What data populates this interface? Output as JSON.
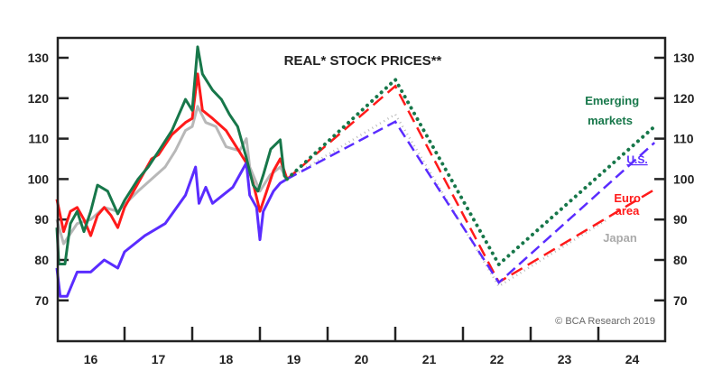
{
  "chart_data": {
    "type": "line",
    "title": "REAL* STOCK PRICES**",
    "copyright": "© BCA Research 2019",
    "xlabel": "",
    "ylabel": "",
    "xlim": [
      2016.0,
      2025.0
    ],
    "ylim": [
      62,
      135
    ],
    "yticks": [
      70,
      80,
      90,
      100,
      110,
      120,
      130
    ],
    "xtick_labels": [
      {
        "year": 2016.5,
        "label": "16"
      },
      {
        "year": 2017.5,
        "label": "17"
      },
      {
        "year": 2018.5,
        "label": "18"
      },
      {
        "year": 2019.5,
        "label": "19"
      },
      {
        "year": 2020.5,
        "label": "20"
      },
      {
        "year": 2021.5,
        "label": "21"
      },
      {
        "year": 2022.5,
        "label": "22"
      },
      {
        "year": 2023.5,
        "label": "23"
      },
      {
        "year": 2024.5,
        "label": "24"
      }
    ],
    "xtick_marks": [
      2017,
      2018,
      2019,
      2020,
      2021,
      2022,
      2023,
      2024
    ],
    "grid": false,
    "series": [
      {
        "name": "Japan",
        "label": "Japan",
        "color": "#b8b8b8",
        "history": [
          [
            2016.0,
            90
          ],
          [
            2016.1,
            84
          ],
          [
            2016.3,
            89
          ],
          [
            2016.5,
            90
          ],
          [
            2016.7,
            93
          ],
          [
            2016.9,
            92
          ],
          [
            2017.2,
            97
          ],
          [
            2017.4,
            100
          ],
          [
            2017.6,
            103
          ],
          [
            2017.75,
            107
          ],
          [
            2017.9,
            112
          ],
          [
            2018.0,
            113
          ],
          [
            2018.08,
            118
          ],
          [
            2018.2,
            114
          ],
          [
            2018.35,
            113
          ],
          [
            2018.5,
            108
          ],
          [
            2018.7,
            107
          ],
          [
            2018.8,
            110
          ],
          [
            2018.85,
            103
          ],
          [
            2019.0,
            97
          ],
          [
            2019.15,
            101
          ],
          [
            2019.3,
            103
          ],
          [
            2019.4,
            100
          ]
        ],
        "projection": [
          [
            2019.4,
            100
          ],
          [
            2021.0,
            116
          ],
          [
            2022.53,
            73.5
          ],
          [
            2024.13,
            90
          ]
        ]
      },
      {
        "name": "Euro area",
        "label": "Euro area",
        "color": "#ff1a1a",
        "history": [
          [
            2016.0,
            95
          ],
          [
            2016.1,
            87
          ],
          [
            2016.2,
            92
          ],
          [
            2016.3,
            93
          ],
          [
            2016.4,
            90
          ],
          [
            2016.5,
            86
          ],
          [
            2016.6,
            91
          ],
          [
            2016.7,
            93
          ],
          [
            2016.8,
            91
          ],
          [
            2016.9,
            88
          ],
          [
            2017.0,
            93
          ],
          [
            2017.2,
            99
          ],
          [
            2017.4,
            105
          ],
          [
            2017.5,
            106
          ],
          [
            2017.7,
            111
          ],
          [
            2017.9,
            114
          ],
          [
            2018.0,
            115
          ],
          [
            2018.08,
            126
          ],
          [
            2018.15,
            117
          ],
          [
            2018.3,
            115
          ],
          [
            2018.5,
            112
          ],
          [
            2018.65,
            108
          ],
          [
            2018.8,
            104
          ],
          [
            2018.9,
            99
          ],
          [
            2019.0,
            92
          ],
          [
            2019.1,
            97
          ],
          [
            2019.2,
            102
          ],
          [
            2019.3,
            105
          ],
          [
            2019.4,
            100
          ]
        ],
        "projection": [
          [
            2019.4,
            100
          ],
          [
            2021.0,
            123
          ],
          [
            2022.53,
            74.5
          ],
          [
            2024.83,
            97.4
          ]
        ]
      },
      {
        "name": "U.S.",
        "label": "U.S.",
        "color": "#5a2cff",
        "history": [
          [
            2016.0,
            78
          ],
          [
            2016.05,
            71
          ],
          [
            2016.15,
            71
          ],
          [
            2016.3,
            77
          ],
          [
            2016.5,
            77
          ],
          [
            2016.7,
            80
          ],
          [
            2016.9,
            78
          ],
          [
            2017.0,
            82
          ],
          [
            2017.3,
            86
          ],
          [
            2017.6,
            89
          ],
          [
            2017.9,
            96
          ],
          [
            2018.05,
            103
          ],
          [
            2018.1,
            94
          ],
          [
            2018.2,
            98
          ],
          [
            2018.3,
            94
          ],
          [
            2018.45,
            96
          ],
          [
            2018.6,
            98
          ],
          [
            2018.8,
            104
          ],
          [
            2018.85,
            96
          ],
          [
            2018.95,
            93
          ],
          [
            2019.0,
            85
          ],
          [
            2019.05,
            92
          ],
          [
            2019.2,
            97
          ],
          [
            2019.3,
            99
          ],
          [
            2019.4,
            100
          ]
        ],
        "projection": [
          [
            2019.4,
            100
          ],
          [
            2021.0,
            114.2
          ],
          [
            2022.53,
            74.4
          ],
          [
            2024.83,
            109
          ]
        ]
      },
      {
        "name": "Emerging markets",
        "label": "Emerging markets",
        "color": "#17774a",
        "history": [
          [
            2016.0,
            88
          ],
          [
            2016.03,
            79
          ],
          [
            2016.12,
            79
          ],
          [
            2016.2,
            89
          ],
          [
            2016.3,
            92
          ],
          [
            2016.4,
            87
          ],
          [
            2016.5,
            92
          ],
          [
            2016.6,
            98.5
          ],
          [
            2016.75,
            97
          ],
          [
            2016.9,
            91.4
          ],
          [
            2017.0,
            94.7
          ],
          [
            2017.2,
            100
          ],
          [
            2017.35,
            103
          ],
          [
            2017.5,
            106.8
          ],
          [
            2017.7,
            112
          ],
          [
            2017.9,
            119.7
          ],
          [
            2018.0,
            117
          ],
          [
            2018.08,
            132.7
          ],
          [
            2018.15,
            126
          ],
          [
            2018.3,
            122
          ],
          [
            2018.43,
            119.7
          ],
          [
            2018.55,
            116
          ],
          [
            2018.67,
            113
          ],
          [
            2018.79,
            105.9
          ],
          [
            2018.9,
            98.5
          ],
          [
            2018.97,
            97
          ],
          [
            2019.05,
            101
          ],
          [
            2019.16,
            107.4
          ],
          [
            2019.3,
            109.7
          ],
          [
            2019.36,
            100.8
          ],
          [
            2019.4,
            100
          ]
        ],
        "projection": [
          [
            2019.4,
            100
          ],
          [
            2021.0,
            124.6
          ],
          [
            2022.53,
            78.9
          ],
          [
            2024.83,
            113
          ]
        ]
      }
    ]
  }
}
